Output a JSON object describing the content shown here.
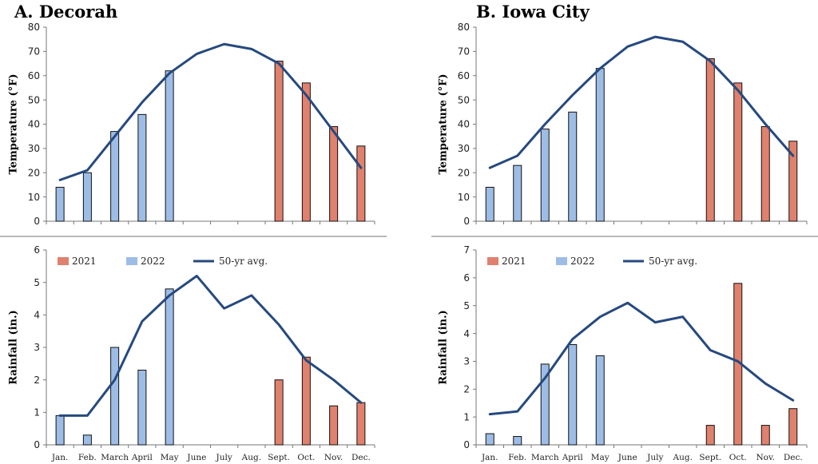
{
  "colors": {
    "y2021": "#e0816d",
    "y2022": "#9dbde6",
    "avg": "#26497f",
    "axis": "#777777",
    "separator": "#b8b8b8",
    "border": "#111111"
  },
  "panels": [
    {
      "id": "decorah",
      "title": "A. Decorah"
    },
    {
      "id": "iowacity",
      "title": "B. Iowa City"
    }
  ],
  "legend": {
    "y2021": "2021",
    "y2022": "2022",
    "avg": "50-yr avg."
  },
  "chart_data": [
    {
      "type": "bar",
      "title": "A. Decorah",
      "ylabel": "Temperature (°F)",
      "ylim": [
        0,
        80
      ],
      "yticks": [
        0,
        10,
        20,
        30,
        40,
        50,
        60,
        70,
        80
      ],
      "categories": [
        "Jan.",
        "Feb.",
        "March",
        "April",
        "May",
        "June",
        "July",
        "Aug.",
        "Sept.",
        "Oct.",
        "Nov.",
        "Dec."
      ],
      "series": [
        {
          "name": "2021",
          "kind": "bar",
          "values": [
            null,
            null,
            null,
            null,
            null,
            null,
            null,
            null,
            66,
            57,
            39,
            31
          ]
        },
        {
          "name": "2022",
          "kind": "bar",
          "values": [
            14,
            20,
            37,
            44,
            62,
            null,
            null,
            null,
            null,
            null,
            null,
            null
          ]
        },
        {
          "name": "50-yr avg.",
          "kind": "line",
          "values": [
            17,
            21,
            35,
            49,
            61,
            69,
            73,
            71,
            65,
            52,
            37,
            22
          ]
        }
      ],
      "legend": false
    },
    {
      "type": "bar",
      "title": "",
      "ylabel": "Rainfall (in.)",
      "ylim": [
        0,
        6
      ],
      "yticks": [
        0,
        1,
        2,
        3,
        4,
        5,
        6
      ],
      "categories": [
        "Jan.",
        "Feb.",
        "March",
        "April",
        "May",
        "June",
        "July",
        "Aug.",
        "Sept.",
        "Oct.",
        "Nov.",
        "Dec."
      ],
      "series": [
        {
          "name": "2021",
          "kind": "bar",
          "values": [
            null,
            null,
            null,
            null,
            null,
            null,
            null,
            null,
            2.0,
            2.7,
            1.2,
            1.3
          ]
        },
        {
          "name": "2022",
          "kind": "bar",
          "values": [
            0.9,
            0.3,
            3.0,
            2.3,
            4.8,
            null,
            null,
            null,
            null,
            null,
            null,
            null
          ]
        },
        {
          "name": "50-yr avg.",
          "kind": "line",
          "values": [
            0.9,
            0.9,
            2.0,
            3.8,
            4.6,
            5.2,
            4.2,
            4.6,
            3.7,
            2.6,
            2.0,
            1.3
          ]
        }
      ],
      "legend": true,
      "legend_placement": "top-left"
    },
    {
      "type": "bar",
      "title": "B. Iowa City",
      "ylabel": "Temperature (°F)",
      "ylim": [
        0,
        80
      ],
      "yticks": [
        0,
        10,
        20,
        30,
        40,
        50,
        60,
        70,
        80
      ],
      "categories": [
        "Jan.",
        "Feb.",
        "March",
        "April",
        "May",
        "June",
        "July",
        "Aug.",
        "Sept.",
        "Oct.",
        "Nov.",
        "Dec."
      ],
      "series": [
        {
          "name": "2021",
          "kind": "bar",
          "values": [
            null,
            null,
            null,
            null,
            null,
            null,
            null,
            null,
            67,
            57,
            39,
            33
          ]
        },
        {
          "name": "2022",
          "kind": "bar",
          "values": [
            14,
            23,
            38,
            45,
            63,
            null,
            null,
            null,
            null,
            null,
            null,
            null
          ]
        },
        {
          "name": "50-yr avg.",
          "kind": "line",
          "values": [
            22,
            27,
            40,
            52,
            63,
            72,
            76,
            74,
            66,
            54,
            40,
            27
          ]
        }
      ],
      "legend": false
    },
    {
      "type": "bar",
      "title": "",
      "ylabel": "Rainfall (in.)",
      "ylim": [
        0,
        7
      ],
      "yticks": [
        0,
        1,
        2,
        3,
        4,
        5,
        6,
        7
      ],
      "categories": [
        "Jan.",
        "Feb.",
        "March",
        "April",
        "May",
        "June",
        "July",
        "Aug.",
        "Sept.",
        "Oct.",
        "Nov.",
        "Dec."
      ],
      "series": [
        {
          "name": "2021",
          "kind": "bar",
          "values": [
            null,
            null,
            null,
            null,
            null,
            null,
            null,
            null,
            0.7,
            5.8,
            0.7,
            1.3
          ]
        },
        {
          "name": "2022",
          "kind": "bar",
          "values": [
            0.4,
            0.3,
            2.9,
            3.6,
            3.2,
            null,
            null,
            null,
            null,
            null,
            null,
            null
          ]
        },
        {
          "name": "50-yr avg.",
          "kind": "line",
          "values": [
            1.1,
            1.2,
            2.4,
            3.8,
            4.6,
            5.1,
            4.4,
            4.6,
            3.4,
            3.0,
            2.2,
            1.6
          ]
        }
      ],
      "legend": true,
      "legend_placement": "top-left"
    }
  ]
}
